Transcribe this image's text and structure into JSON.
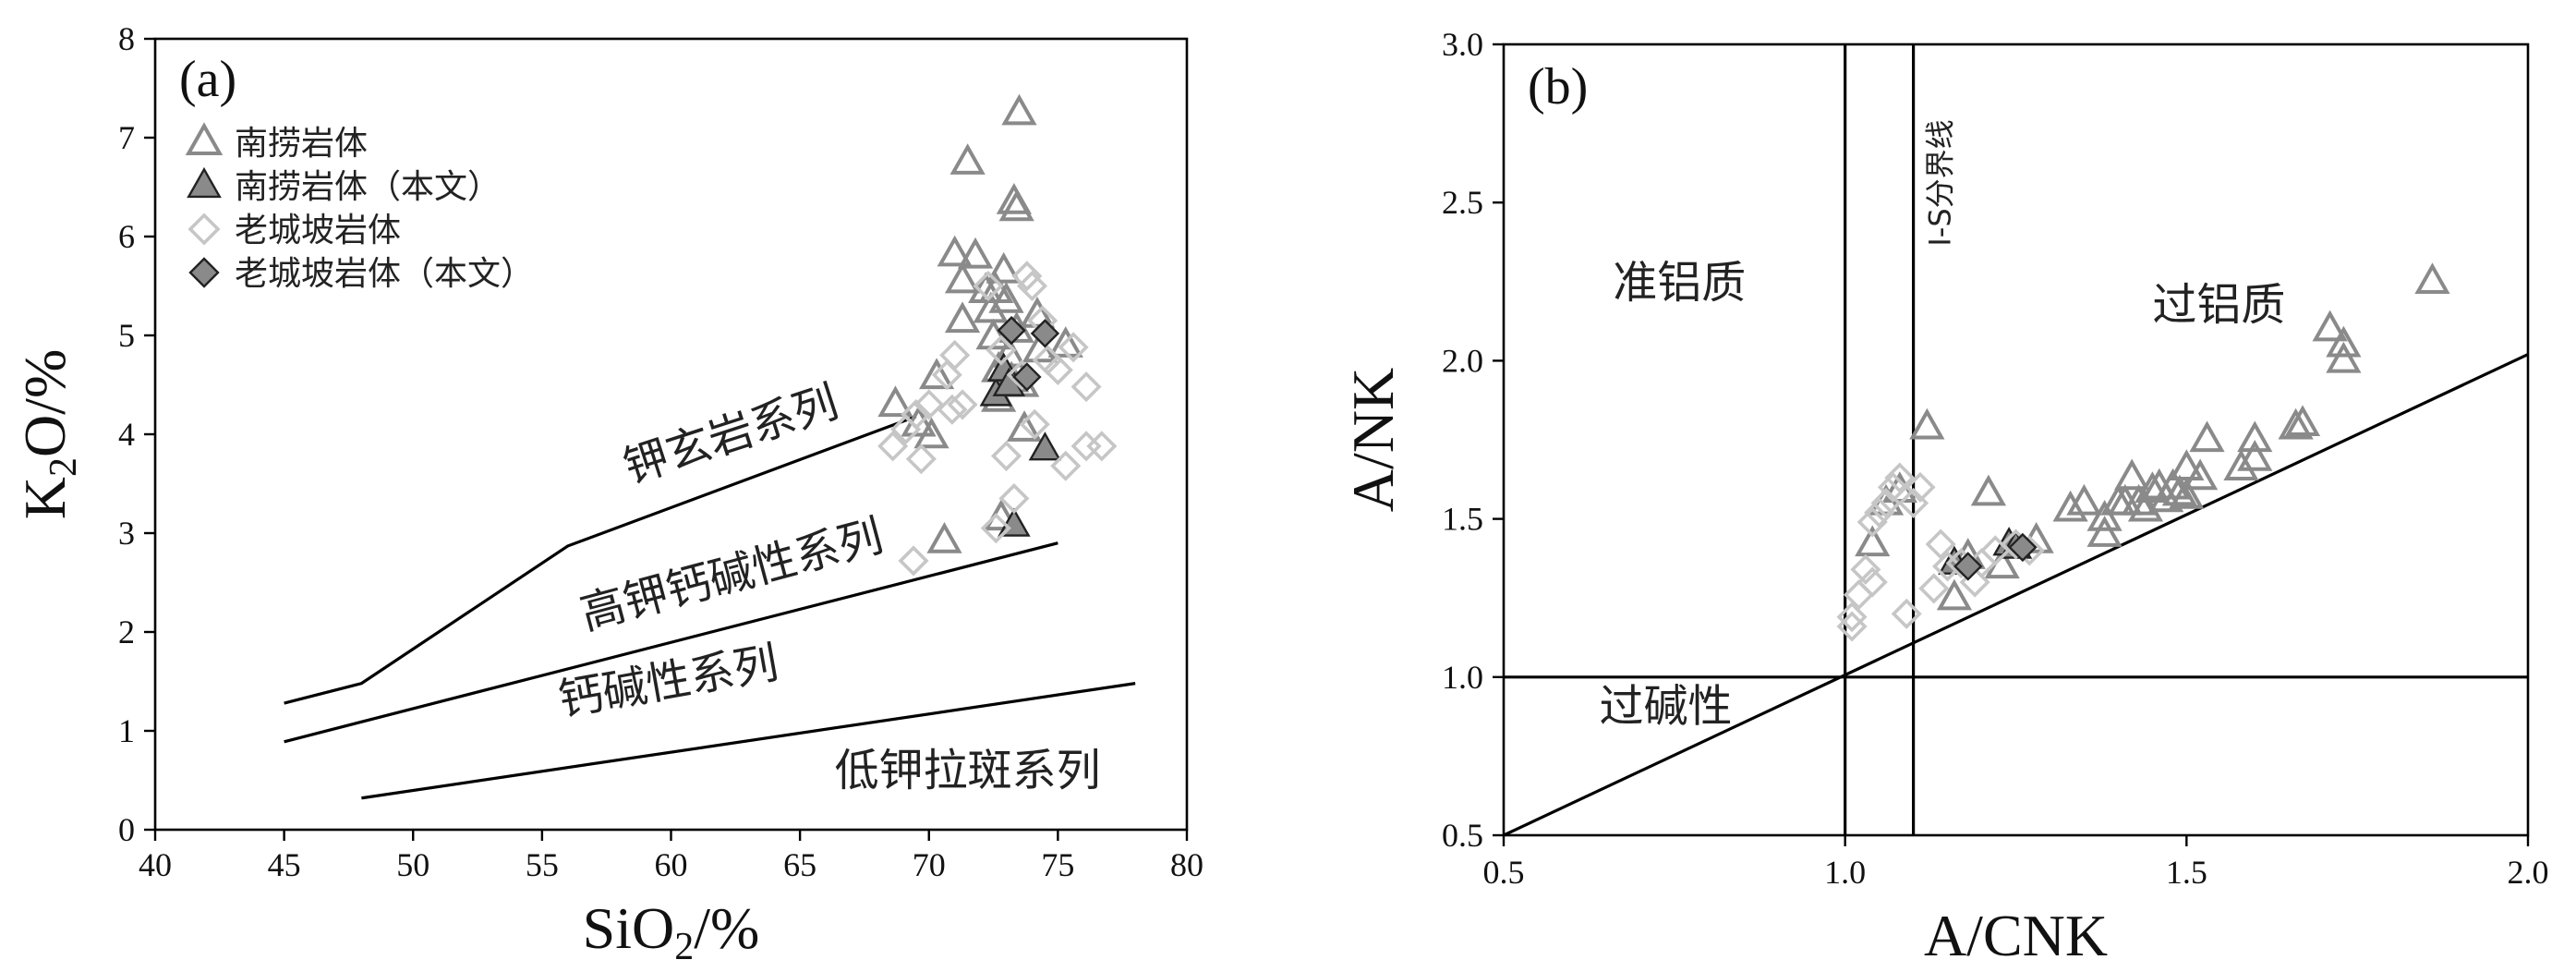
{
  "colors": {
    "nanlao": "#8a8a8a",
    "laochengpo": "#c6c6c6",
    "this_study_fill": "#8a8a8a",
    "line": "#000000"
  },
  "chart_data": [
    {
      "type": "scatter",
      "panel_label": "(a)",
      "xlabel": "SiO",
      "xlabel_sub": "2",
      "xlabel_suffix": "/%",
      "ylabel": "K",
      "ylabel_sub": "2",
      "ylabel_suffix": "O/%",
      "xlim": [
        40,
        80
      ],
      "ylim": [
        0,
        8
      ],
      "xticks": [
        "40",
        "45",
        "50",
        "55",
        "60",
        "65",
        "70",
        "75",
        "80"
      ],
      "yticks": [
        "0",
        "1",
        "2",
        "3",
        "4",
        "5",
        "6",
        "7",
        "8"
      ],
      "legend": {
        "position": "top-left",
        "items": [
          {
            "label": "南捞岩体",
            "marker": "triangle-open"
          },
          {
            "label": "南捞岩体（本文）",
            "marker": "triangle-filled"
          },
          {
            "label": "老城坡岩体",
            "marker": "diamond-open"
          },
          {
            "label": "老城坡岩体（本文）",
            "marker": "diamond-filled"
          }
        ]
      },
      "boundaries": [
        [
          [
            45,
            1.28
          ],
          [
            48,
            1.48
          ],
          [
            56,
            2.87
          ],
          [
            69.5,
            4.18
          ]
        ],
        [
          [
            45,
            0.89
          ],
          [
            75,
            2.9
          ]
        ],
        [
          [
            48,
            0.32
          ],
          [
            78,
            1.48
          ]
        ]
      ],
      "region_labels": [
        {
          "text": "钾玄岩系列",
          "x": 62.5,
          "y": 3.85,
          "angle": -18
        },
        {
          "text": "高钾钙碱性系列",
          "x": 62.5,
          "y": 2.43,
          "angle": -15
        },
        {
          "text": "钙碱性系列",
          "x": 60,
          "y": 1.35,
          "angle": -10
        },
        {
          "text": "低钾拉斑系列",
          "x": 71.5,
          "y": 0.45,
          "angle": 0
        }
      ],
      "series": [
        {
          "name": "南捞岩体",
          "marker": "triangle-open",
          "points": [
            [
              68.7,
              4.3
            ],
            [
              69.6,
              4.1
            ],
            [
              70.1,
              3.98
            ],
            [
              70.3,
              4.58
            ],
            [
              70.6,
              2.92
            ],
            [
              71.0,
              5.82
            ],
            [
              71.3,
              5.55
            ],
            [
              71.3,
              5.15
            ],
            [
              71.5,
              6.75
            ],
            [
              71.8,
              5.8
            ],
            [
              72.2,
              5.45
            ],
            [
              72.4,
              5.25
            ],
            [
              72.5,
              4.98
            ],
            [
              72.6,
              5.45
            ],
            [
              72.7,
              4.65
            ],
            [
              72.7,
              4.35
            ],
            [
              72.9,
              5.65
            ],
            [
              72.9,
              4.5
            ],
            [
              73.0,
              5.35
            ],
            [
              73.1,
              4.8
            ],
            [
              73.2,
              4.55
            ],
            [
              73.3,
              6.35
            ],
            [
              73.4,
              6.28
            ],
            [
              73.4,
              5.05
            ],
            [
              73.5,
              7.25
            ],
            [
              73.6,
              4.5
            ],
            [
              73.7,
              4.05
            ],
            [
              72.8,
              3.15
            ],
            [
              74.2,
              5.2
            ],
            [
              74.3,
              4.85
            ],
            [
              75.3,
              4.9
            ]
          ]
        },
        {
          "name": "南捞岩体（本文）",
          "marker": "triangle-filled",
          "points": [
            [
              72.6,
              4.4
            ],
            [
              72.9,
              4.65
            ],
            [
              73.1,
              4.5
            ],
            [
              73.3,
              3.08
            ],
            [
              74.5,
              3.85
            ]
          ]
        },
        {
          "name": "老城坡岩体",
          "marker": "diamond-open",
          "points": [
            [
              68.6,
              3.88
            ],
            [
              69.1,
              4.05
            ],
            [
              69.4,
              2.72
            ],
            [
              69.5,
              4.2
            ],
            [
              69.7,
              3.75
            ],
            [
              70.0,
              4.3
            ],
            [
              70.7,
              4.6
            ],
            [
              70.9,
              4.25
            ],
            [
              71.0,
              4.8
            ],
            [
              71.3,
              4.3
            ],
            [
              72.3,
              5.5
            ],
            [
              72.6,
              3.05
            ],
            [
              72.8,
              4.85
            ],
            [
              73.0,
              3.78
            ],
            [
              73.3,
              3.35
            ],
            [
              73.6,
              4.6
            ],
            [
              73.8,
              5.6
            ],
            [
              74.0,
              5.5
            ],
            [
              74.1,
              4.1
            ],
            [
              74.4,
              5.15
            ],
            [
              74.6,
              4.75
            ],
            [
              75.0,
              4.65
            ],
            [
              75.3,
              3.68
            ],
            [
              75.6,
              4.88
            ],
            [
              76.1,
              3.88
            ],
            [
              76.1,
              4.48
            ],
            [
              76.7,
              3.88
            ]
          ]
        },
        {
          "name": "老城坡岩体（本文）",
          "marker": "diamond-filled",
          "points": [
            [
              73.2,
              5.05
            ],
            [
              73.8,
              4.58
            ],
            [
              74.5,
              5.02
            ]
          ]
        }
      ]
    },
    {
      "type": "scatter",
      "panel_label": "(b)",
      "xlabel": "A/CNK",
      "ylabel": "A/NK",
      "xlim": [
        0.5,
        2.0
      ],
      "ylim": [
        0.5,
        3.0
      ],
      "xticks": [
        "0.5",
        "1.0",
        "1.5",
        "2.0"
      ],
      "yticks": [
        "0.5",
        "1.0",
        "1.5",
        "2.0",
        "2.5",
        "3.0"
      ],
      "reference_lines": [
        {
          "kind": "vertical",
          "x": 1.0
        },
        {
          "kind": "vertical",
          "x": 1.1,
          "label": "I-S分界线"
        },
        {
          "kind": "horizontal",
          "y": 1.0
        },
        {
          "kind": "segment",
          "from": [
            0.5,
            0.5
          ],
          "to": [
            2.0,
            2.02
          ]
        }
      ],
      "region_labels": [
        {
          "text": "准铝质",
          "x": 0.66,
          "y": 2.2
        },
        {
          "text": "过铝质",
          "x": 1.45,
          "y": 2.13
        },
        {
          "text": "过碱性",
          "x": 0.64,
          "y": 0.86
        }
      ],
      "series": [
        {
          "name": "南捞岩体",
          "marker": "triangle-open",
          "points": [
            [
              1.04,
              1.42
            ],
            [
              1.06,
              1.55
            ],
            [
              1.08,
              1.59
            ],
            [
              1.12,
              1.79
            ],
            [
              1.16,
              1.25
            ],
            [
              1.18,
              1.38
            ],
            [
              1.21,
              1.58
            ],
            [
              1.23,
              1.35
            ],
            [
              1.28,
              1.43
            ],
            [
              1.33,
              1.53
            ],
            [
              1.35,
              1.55
            ],
            [
              1.38,
              1.45
            ],
            [
              1.38,
              1.5
            ],
            [
              1.4,
              1.55
            ],
            [
              1.41,
              1.55
            ],
            [
              1.42,
              1.63
            ],
            [
              1.43,
              1.55
            ],
            [
              1.44,
              1.53
            ],
            [
              1.45,
              1.59
            ],
            [
              1.46,
              1.6
            ],
            [
              1.47,
              1.56
            ],
            [
              1.48,
              1.6
            ],
            [
              1.49,
              1.58
            ],
            [
              1.5,
              1.57
            ],
            [
              1.5,
              1.66
            ],
            [
              1.52,
              1.63
            ],
            [
              1.53,
              1.75
            ],
            [
              1.58,
              1.66
            ],
            [
              1.6,
              1.75
            ],
            [
              1.6,
              1.69
            ],
            [
              1.66,
              1.79
            ],
            [
              1.67,
              1.8
            ],
            [
              1.71,
              2.1
            ],
            [
              1.73,
              2.0
            ],
            [
              1.73,
              2.05
            ],
            [
              1.86,
              2.25
            ]
          ]
        },
        {
          "name": "南捞岩体（本文）",
          "marker": "triangle-filled",
          "points": [
            [
              1.16,
              1.36
            ],
            [
              1.24,
              1.42
            ],
            [
              1.25,
              1.41
            ]
          ]
        },
        {
          "name": "老城坡岩体",
          "marker": "diamond-open",
          "points": [
            [
              1.01,
              1.16
            ],
            [
              1.01,
              1.19
            ],
            [
              1.02,
              1.26
            ],
            [
              1.03,
              1.34
            ],
            [
              1.04,
              1.3
            ],
            [
              1.04,
              1.49
            ],
            [
              1.05,
              1.52
            ],
            [
              1.06,
              1.55
            ],
            [
              1.07,
              1.6
            ],
            [
              1.08,
              1.63
            ],
            [
              1.09,
              1.2
            ],
            [
              1.1,
              1.55
            ],
            [
              1.11,
              1.6
            ],
            [
              1.13,
              1.28
            ],
            [
              1.14,
              1.42
            ],
            [
              1.15,
              1.35
            ],
            [
              1.17,
              1.36
            ],
            [
              1.19,
              1.3
            ],
            [
              1.2,
              1.36
            ],
            [
              1.22,
              1.4
            ],
            [
              1.25,
              1.42
            ],
            [
              1.27,
              1.4
            ]
          ]
        },
        {
          "name": "老城坡岩体（本文）",
          "marker": "diamond-filled",
          "points": [
            [
              1.18,
              1.35
            ],
            [
              1.26,
              1.41
            ]
          ]
        }
      ]
    }
  ]
}
